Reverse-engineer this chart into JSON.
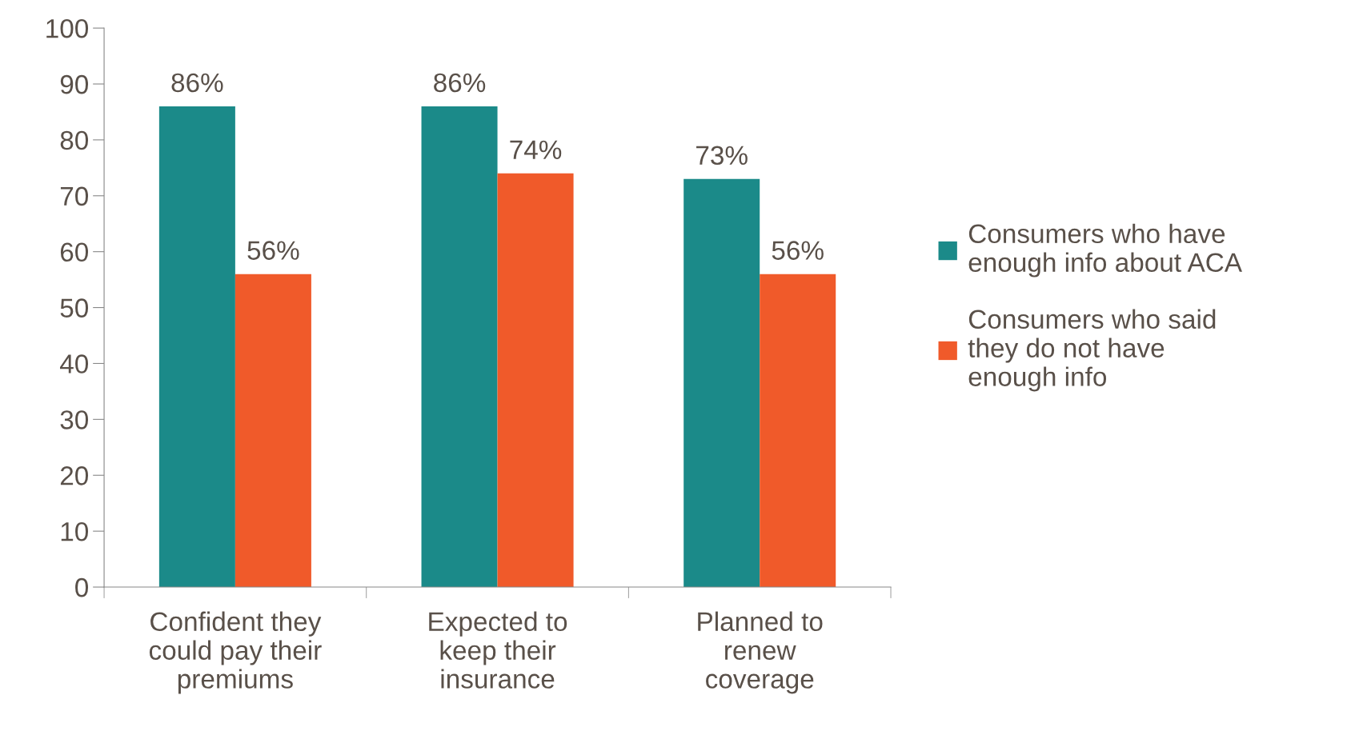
{
  "chart_data": {
    "type": "bar",
    "categories": [
      "Confident they\ncould pay their\npremiums",
      "Expected to\nkeep their\ninsurance",
      "Planned to\nrenew\ncoverage"
    ],
    "series": [
      {
        "name": "Consumers who have\nenough info about ACA",
        "color": "#1b8a89",
        "values": [
          86,
          86,
          73
        ],
        "value_labels": [
          "86%",
          "86%",
          "73%"
        ]
      },
      {
        "name": "Consumers who said\nthey do not have\nenough info",
        "color": "#f05a2a",
        "values": [
          56,
          74,
          56
        ],
        "value_labels": [
          "56%",
          "74%",
          "56%"
        ]
      }
    ],
    "ylim": [
      0,
      100
    ],
    "yticks": [
      0,
      10,
      20,
      30,
      40,
      50,
      60,
      70,
      80,
      90,
      100
    ],
    "grid": false,
    "legend": "right"
  }
}
